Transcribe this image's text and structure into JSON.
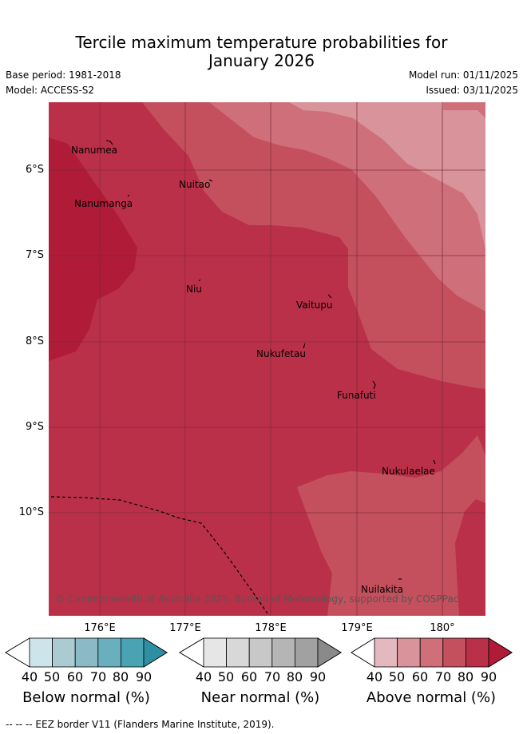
{
  "header": {
    "title_line1": "Tercile maximum temperature probabilities for",
    "title_line2": "January 2026",
    "base_period": "Base period: 1981-2018",
    "model": "Model: ACCESS-S2",
    "model_run": "Model run: 01/11/2025",
    "issued": "Issued: 03/11/2025"
  },
  "map": {
    "islands": [
      "Nanumea",
      "Nuitao",
      "Nanumanga",
      "Niu",
      "Vaitupu",
      "Nukufetau",
      "Funafuti",
      "Nukulaelae",
      "Nuilakita"
    ],
    "lat_labels": [
      "6°S",
      "7°S",
      "8°S",
      "9°S",
      "10°S"
    ],
    "lon_labels": [
      "176°E",
      "177°E",
      "178°E",
      "179°E",
      "180°"
    ],
    "copyright": "© Commonwealth of Australia 2025, Bureau of Meteorology, supported by COSPPac",
    "colors": {
      "above_50": "#e3b8bf",
      "above_60": "#d8939b",
      "above_70": "#cf6f7a",
      "above_80": "#c4505e",
      "above_90": "#bb3049",
      "above_max": "#b01c38"
    }
  },
  "legend": {
    "ticks": [
      "40",
      "50",
      "60",
      "70",
      "80",
      "90"
    ],
    "below": {
      "title": "Below normal (%)",
      "colors": [
        "#cde5ea",
        "#a9cbd1",
        "#8bbac6",
        "#6aafbd",
        "#4aa3b3",
        "#2e8fa3"
      ]
    },
    "near": {
      "title": "Near normal (%)",
      "colors": [
        "#e6e6e6",
        "#d8d8d8",
        "#c8c8c8",
        "#b5b5b5",
        "#a1a1a1",
        "#8a8a8a"
      ]
    },
    "above": {
      "title": "Above normal (%)",
      "colors": [
        "#e3b8bf",
        "#d8939b",
        "#cf6f7a",
        "#c4505e",
        "#bb3049",
        "#b01c38"
      ]
    }
  },
  "footer": "--  --  -- EEZ border V11 (Flanders Marine Institute, 2019)."
}
